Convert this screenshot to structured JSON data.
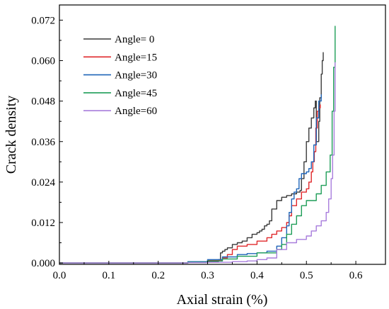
{
  "chart_data": {
    "type": "line",
    "title": "",
    "xlabel": "Axial strain (%)",
    "ylabel": "Crack density",
    "xlim": [
      0,
      0.66
    ],
    "ylim": [
      -0.0004,
      0.0765
    ],
    "xticks": [
      0.0,
      0.1,
      0.2,
      0.3,
      0.4,
      0.5,
      0.6
    ],
    "xtick_labels": [
      "0.0",
      "0.1",
      "0.2",
      "0.3",
      "0.4",
      "0.5",
      "0.6"
    ],
    "yticks": [
      0.0,
      0.012,
      0.024,
      0.036,
      0.048,
      0.06,
      0.072
    ],
    "ytick_labels": [
      "0.000",
      "0.012",
      "0.024",
      "0.036",
      "0.048",
      "0.060",
      "0.072"
    ],
    "legend_position": "top-left",
    "grid": false,
    "series": [
      {
        "name": "Angle= 0",
        "color": "#3a3a3a",
        "x": [
          0.0,
          0.2,
          0.26,
          0.3,
          0.322,
          0.326,
          0.33,
          0.335,
          0.34,
          0.35,
          0.36,
          0.37,
          0.38,
          0.39,
          0.4,
          0.405,
          0.41,
          0.415,
          0.42,
          0.425,
          0.43,
          0.44,
          0.45,
          0.46,
          0.47,
          0.48,
          0.487,
          0.49,
          0.495,
          0.5,
          0.505,
          0.51,
          0.515,
          0.518,
          0.52,
          0.525,
          0.527,
          0.53,
          0.532,
          0.534
        ],
        "y": [
          0.0,
          0.0,
          0.0002,
          0.0004,
          0.001,
          0.003,
          0.0035,
          0.004,
          0.0045,
          0.0055,
          0.006,
          0.0065,
          0.0075,
          0.0085,
          0.009,
          0.0095,
          0.01,
          0.011,
          0.0115,
          0.0125,
          0.016,
          0.0185,
          0.0195,
          0.02,
          0.0205,
          0.021,
          0.0215,
          0.025,
          0.03,
          0.036,
          0.04,
          0.043,
          0.046,
          0.048,
          0.036,
          0.042,
          0.049,
          0.056,
          0.06,
          0.0625
        ]
      },
      {
        "name": "Angle=15",
        "color": "#e0282b",
        "x": [
          0.0,
          0.2,
          0.26,
          0.3,
          0.33,
          0.34,
          0.35,
          0.36,
          0.38,
          0.4,
          0.42,
          0.43,
          0.44,
          0.45,
          0.46,
          0.465,
          0.47,
          0.48,
          0.49,
          0.5,
          0.505,
          0.51,
          0.513,
          0.516,
          0.519,
          0.522,
          0.525,
          0.528
        ],
        "y": [
          0.0,
          0.0,
          0.0003,
          0.0008,
          0.0015,
          0.0025,
          0.004,
          0.005,
          0.0055,
          0.0065,
          0.0075,
          0.0085,
          0.0095,
          0.0105,
          0.012,
          0.014,
          0.017,
          0.019,
          0.021,
          0.022,
          0.024,
          0.027,
          0.03,
          0.033,
          0.04,
          0.045,
          0.046,
          0.047
        ]
      },
      {
        "name": "Angle=30",
        "color": "#1f65b8",
        "x": [
          0.0,
          0.2,
          0.26,
          0.3,
          0.33,
          0.36,
          0.38,
          0.4,
          0.42,
          0.44,
          0.45,
          0.46,
          0.465,
          0.47,
          0.475,
          0.48,
          0.485,
          0.49,
          0.5,
          0.505,
          0.51,
          0.515,
          0.52,
          0.525,
          0.53
        ],
        "y": [
          0.0,
          0.0,
          0.0004,
          0.001,
          0.0018,
          0.0025,
          0.0028,
          0.003,
          0.0035,
          0.005,
          0.0075,
          0.011,
          0.015,
          0.019,
          0.021,
          0.022,
          0.025,
          0.0265,
          0.027,
          0.028,
          0.03,
          0.035,
          0.043,
          0.048,
          0.05
        ]
      },
      {
        "name": "Angle=45",
        "color": "#1f9e58",
        "x": [
          0.0,
          0.2,
          0.26,
          0.3,
          0.33,
          0.36,
          0.4,
          0.44,
          0.45,
          0.46,
          0.47,
          0.48,
          0.49,
          0.5,
          0.52,
          0.53,
          0.54,
          0.548,
          0.552,
          0.555,
          0.558
        ],
        "y": [
          0.0,
          0.0,
          0.0002,
          0.0006,
          0.0012,
          0.002,
          0.003,
          0.004,
          0.0055,
          0.0085,
          0.0115,
          0.014,
          0.017,
          0.0185,
          0.0205,
          0.023,
          0.027,
          0.032,
          0.045,
          0.058,
          0.0703
        ]
      },
      {
        "name": "Angle=60",
        "color": "#a87ddc",
        "x": [
          0.0,
          0.2,
          0.26,
          0.3,
          0.35,
          0.38,
          0.4,
          0.42,
          0.44,
          0.46,
          0.48,
          0.5,
          0.51,
          0.52,
          0.53,
          0.54,
          0.545,
          0.55,
          0.553,
          0.556,
          0.558
        ],
        "y": [
          0.0,
          0.0,
          0.0001,
          0.0002,
          0.0004,
          0.0006,
          0.001,
          0.0015,
          0.004,
          0.006,
          0.007,
          0.008,
          0.0095,
          0.011,
          0.0125,
          0.015,
          0.019,
          0.025,
          0.032,
          0.045,
          0.0595
        ]
      }
    ]
  }
}
